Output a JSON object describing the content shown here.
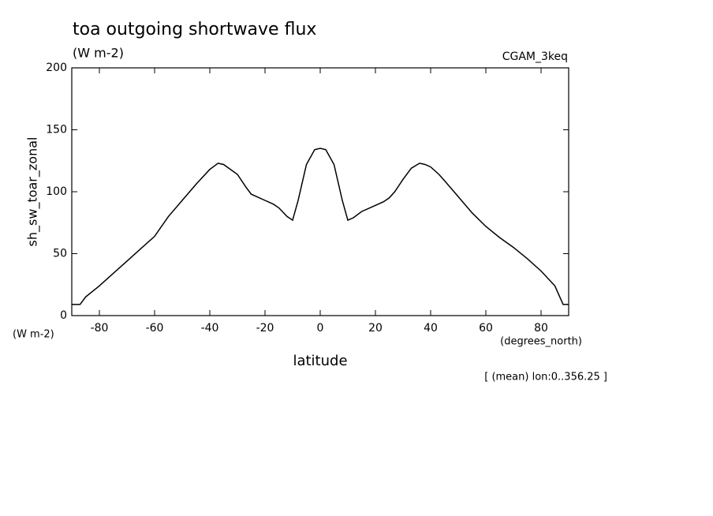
{
  "chart_data": {
    "type": "line",
    "title": "toa outgoing shortwave flux",
    "subtitle": "(W m-2)",
    "dataset": "CGAM_3keq",
    "ylabel": "sh_sw_toar_zonal",
    "y_units": "(W m-2)",
    "xlabel": "latitude",
    "x_units": "(degrees_north)",
    "footnote": "[ (mean) lon:0..356.25 ]",
    "xlim": [
      -90,
      90
    ],
    "xticks": [
      -80,
      -60,
      -40,
      -20,
      0,
      20,
      40,
      60,
      80
    ],
    "ylim": [
      0,
      200
    ],
    "yticks": [
      0,
      50,
      100,
      150,
      200
    ],
    "color": "#000000",
    "x": [
      -90,
      -87,
      -85,
      -80,
      -75,
      -70,
      -65,
      -60,
      -55,
      -50,
      -45,
      -40,
      -37,
      -35,
      -30,
      -27,
      -25,
      -20,
      -17,
      -15,
      -12,
      -10,
      -8,
      -5,
      -2,
      0,
      2,
      5,
      8,
      10,
      12,
      15,
      20,
      23,
      25,
      27,
      30,
      33,
      36,
      38,
      40,
      43,
      45,
      50,
      55,
      60,
      65,
      70,
      75,
      80,
      85,
      88,
      90
    ],
    "values": [
      9,
      9,
      15,
      24,
      34,
      44,
      54,
      64,
      80,
      93,
      106,
      118,
      123,
      122,
      114,
      104,
      98,
      93,
      90,
      87,
      80,
      77,
      93,
      122,
      134,
      135,
      134,
      122,
      93,
      77,
      79,
      84,
      89,
      92,
      95,
      100,
      110,
      119,
      123,
      122,
      120,
      114,
      109,
      96,
      83,
      72,
      63,
      55,
      46,
      36,
      24,
      9,
      9
    ]
  }
}
